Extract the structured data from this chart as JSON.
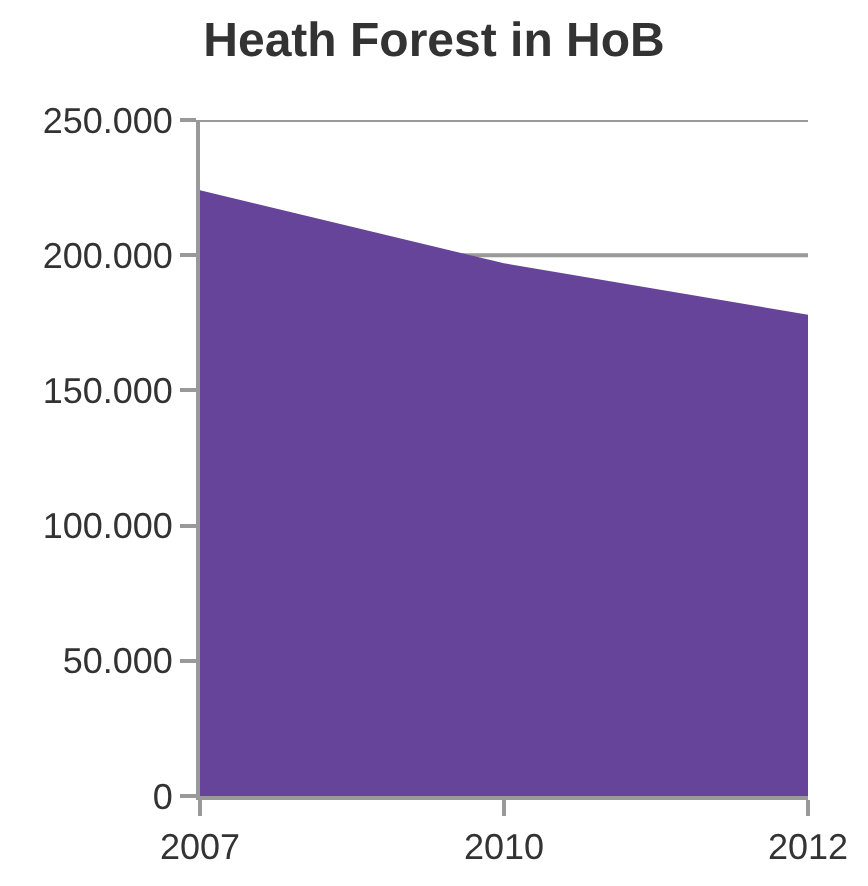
{
  "chart_data": {
    "type": "area",
    "title": "Heath Forest in HoB",
    "categories": [
      "2007",
      "2010",
      "2012"
    ],
    "series": [
      {
        "color": "#66449a",
        "values": [
          224000,
          197000,
          178000
        ]
      }
    ],
    "ylim": [
      0,
      250000
    ],
    "yticks": [
      {
        "value": 0,
        "label": "0"
      },
      {
        "value": 50000,
        "label": "50.000"
      },
      {
        "value": 100000,
        "label": "100.000"
      },
      {
        "value": 150000,
        "label": "150.000"
      },
      {
        "value": 200000,
        "label": "200.000"
      },
      {
        "value": 250000,
        "label": "250.000"
      }
    ],
    "grid": "y"
  }
}
